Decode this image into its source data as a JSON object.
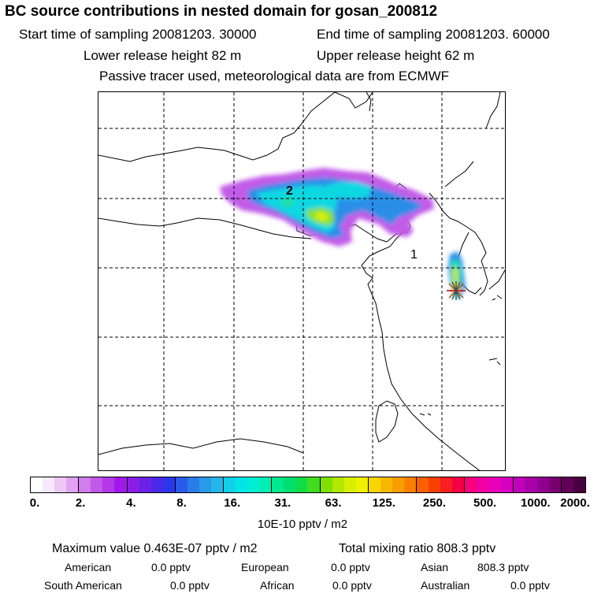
{
  "header": {
    "title": "BC  source contributions in nested domain for gosan_200812",
    "start_time": "Start time of sampling 20081203. 30000",
    "end_time": "End time of sampling 20081203. 60000",
    "lower_height": "Lower release height   82 m",
    "upper_height": "Upper release height   62 m",
    "tracer_note": "Passive tracer used, meteorological data are from ECMWF"
  },
  "chart_data": {
    "type": "heatmap",
    "title": "BC  source contributions in nested domain for gosan_200812",
    "map_labels": [
      "1",
      "2"
    ],
    "colorbar": {
      "tick_labels": [
        "0.",
        "2.",
        "4.",
        "8.",
        "16.",
        "31.",
        "63.",
        "125.",
        "250.",
        "500.",
        "1000.",
        "2000."
      ],
      "unit_label": "10E-10 pptv / m2",
      "colors": [
        "#ffffff",
        "#f7e8fb",
        "#ecc8f7",
        "#e2a4f2",
        "#d07ee9",
        "#c058e8",
        "#b238ea",
        "#a218ea",
        "#8a1ee6",
        "#6a22e6",
        "#4a28e8",
        "#2c36ea",
        "#2a5ae8",
        "#2a7ce8",
        "#2a9ae8",
        "#22b6ea",
        "#10d0e8",
        "#00e6e6",
        "#00eed4",
        "#00eeb4",
        "#00e890",
        "#00e070",
        "#10dc48",
        "#40dc20",
        "#80e000",
        "#b0e800",
        "#d8f000",
        "#f0f000",
        "#f8d400",
        "#f8b800",
        "#f89c00",
        "#f88000",
        "#f86000",
        "#f84000",
        "#f82020",
        "#f80044",
        "#f8007c",
        "#f000a0",
        "#e800b8",
        "#d800c0",
        "#c000b8",
        "#a800a8",
        "#900090",
        "#780070",
        "#600058",
        "#480040"
      ]
    }
  },
  "stats": {
    "max_value": "Maximum value  0.463E-07 pptv / m2",
    "total_mixing": "Total mixing ratio     808.3 pptv",
    "american_label": "American",
    "american_value": "0.0 pptv",
    "european_label": "European",
    "european_value": "0.0 pptv",
    "asian_label": "Asian",
    "asian_value": "808.3 pptv",
    "south_american_label": "South American",
    "south_american_value": "0.0 pptv",
    "african_label": "African",
    "african_value": "0.0 pptv",
    "australian_label": "Australian",
    "australian_value": "0.0 pptv"
  }
}
